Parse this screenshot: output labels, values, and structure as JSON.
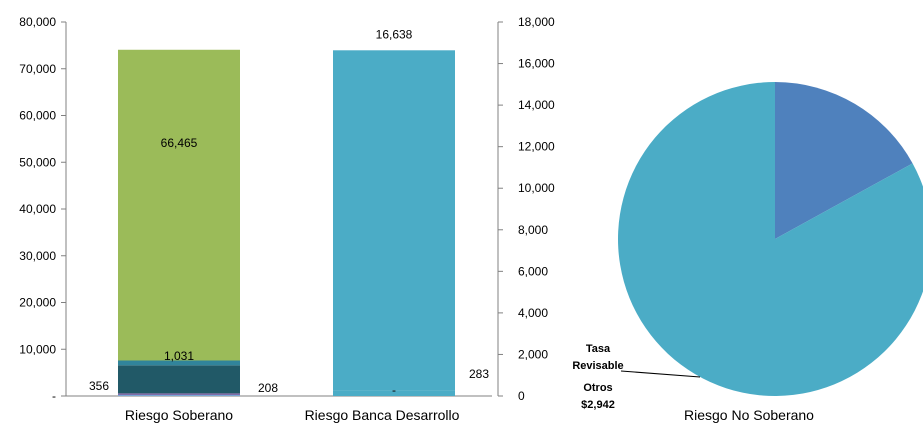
{
  "chart_data": [
    {
      "type": "bar",
      "stacked": true,
      "categories": [
        "Riesgo Soberano",
        "Riesgo Banca Desarrollo"
      ],
      "left_axis": {
        "ylim": [
          0,
          80000
        ],
        "ticks": [
          0,
          10000,
          20000,
          30000,
          40000,
          50000,
          60000,
          70000,
          80000
        ],
        "tick_labels": [
          "-",
          "10,000",
          "20,000",
          "30,000",
          "40,000",
          "50,000",
          "60,000",
          "70,000",
          "80,000"
        ]
      },
      "right_axis": {
        "ylim": [
          0,
          18000
        ],
        "ticks": [
          0,
          2000,
          4000,
          6000,
          8000,
          10000,
          12000,
          14000,
          16000,
          18000
        ],
        "tick_labels": [
          "0",
          "2,000",
          "4,000",
          "6,000",
          "8,000",
          "10,000",
          "12,000",
          "14,000",
          "16,000",
          "18,000"
        ]
      },
      "series": [
        {
          "category": "Riesgo Soberano",
          "axis": "left",
          "segments": [
            {
              "value": 356,
              "color": "#7aa7d6",
              "label": "356"
            },
            {
              "value": 208,
              "color": "#8064a2",
              "label": "208"
            },
            {
              "value": 6000,
              "color": "#215967",
              "label": ""
            },
            {
              "value": 1031,
              "color": "#31849b",
              "label": "1,031"
            },
            {
              "value": 66465,
              "color": "#9bbb59",
              "label": "66,465"
            }
          ]
        },
        {
          "category": "Riesgo Banca Desarrollo",
          "axis": "right",
          "segments": [
            {
              "value": 0,
              "color": "#4bacc6",
              "label": "-"
            },
            {
              "value": 283,
              "color": "#4bacc6",
              "label": "283"
            },
            {
              "value": 16355,
              "color": "#4bacc6",
              "label": ""
            }
          ],
          "total_label": "16,638"
        }
      ]
    },
    {
      "type": "pie",
      "caption": "Riesgo No Soberano",
      "slices": [
        {
          "name": "",
          "fraction": 0.17,
          "color": "#4f81bd"
        },
        {
          "name": "Tasa Revisable Otros",
          "value_label": "$2,942",
          "fraction": 0.83,
          "color": "#4bacc6"
        }
      ],
      "callout": {
        "lines": [
          "Tasa",
          "Revisable",
          "Otros",
          "$2,942"
        ]
      }
    }
  ]
}
